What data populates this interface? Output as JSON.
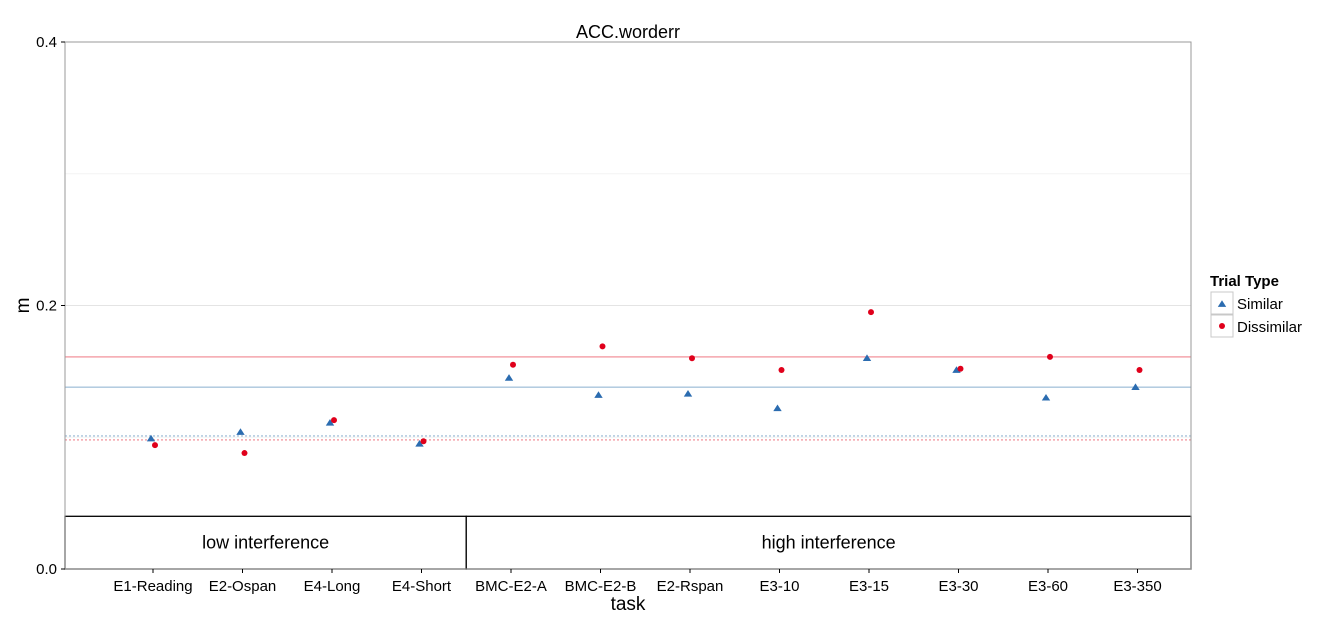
{
  "chart_data": {
    "type": "scatter",
    "title": "ACC.worderr",
    "xlabel": "task",
    "ylabel": "m",
    "ylim": [
      0,
      0.4
    ],
    "yticks": [
      "0.0",
      "0.2",
      "0.4"
    ],
    "categories": [
      "E1-Reading",
      "E2-Ospan",
      "E4-Long",
      "E4-Short",
      "BMC-E2-A",
      "BMC-E2-B",
      "E2-Rspan",
      "E3-10",
      "E3-15",
      "E3-30",
      "E3-60",
      "E3-350"
    ],
    "series": [
      {
        "name": "Similar",
        "marker": "triangle",
        "color": "#2b6cb0",
        "values": [
          0.099,
          0.104,
          0.111,
          0.095,
          0.145,
          0.132,
          0.133,
          0.122,
          0.16,
          0.151,
          0.13,
          0.138
        ]
      },
      {
        "name": "Dissimilar",
        "marker": "circle",
        "color": "#e0001b",
        "values": [
          0.094,
          0.088,
          0.113,
          0.097,
          0.155,
          0.169,
          0.16,
          0.151,
          0.195,
          0.152,
          0.161,
          0.151
        ]
      }
    ],
    "reference_lines": [
      {
        "series": "Dissimilar",
        "value": 0.161,
        "style": "solid",
        "color": "#f4a5ac"
      },
      {
        "series": "Similar",
        "value": 0.138,
        "style": "solid",
        "color": "#a9c4dc"
      },
      {
        "series": "Similar",
        "value": 0.101,
        "style": "dotted",
        "color": "#a9c4dc"
      },
      {
        "series": "Dissimilar",
        "value": 0.098,
        "style": "dotted",
        "color": "#f4a5ac"
      }
    ],
    "groups": [
      {
        "label": "low interference",
        "from": 0,
        "to": 3
      },
      {
        "label": "high interference",
        "from": 4,
        "to": 11
      }
    ],
    "group_band": [
      0,
      0.04
    ],
    "grid": true,
    "legend": {
      "title": "Trial Type",
      "position": "right",
      "entries": [
        "Similar",
        "Dissimilar"
      ]
    }
  }
}
